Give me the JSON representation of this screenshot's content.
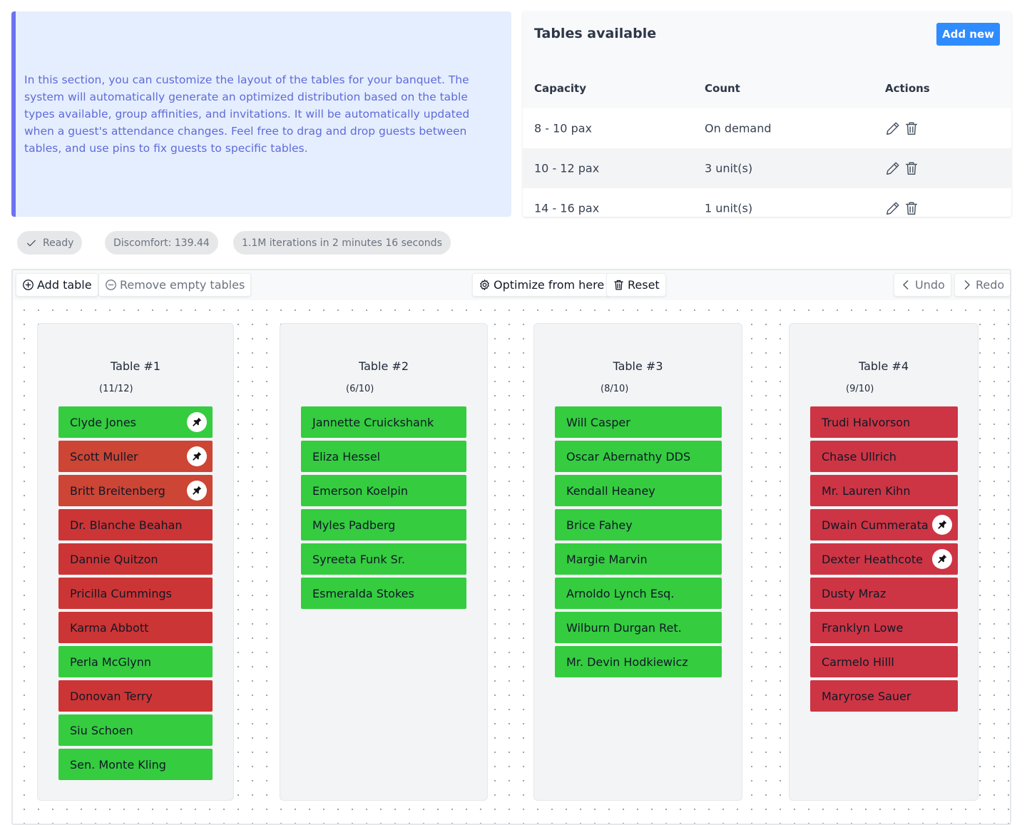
{
  "info": {
    "text": "In this section, you can customize the layout of the tables for your banquet. The system will automatically generate an optimized distribution based on the table types available, group affinities, and invitations. It will be automatically updated when a guest's attendance changes. Feel free to drag and drop guests between tables, and use pins to fix guests to specific tables."
  },
  "tables_available": {
    "title": "Tables available",
    "add_new_label": "Add new",
    "headers": [
      "Capacity",
      "Count",
      "Actions"
    ],
    "rows": [
      {
        "capacity": "8 - 10 pax",
        "count": "On demand"
      },
      {
        "capacity": "10 - 12 pax",
        "count": "3 unit(s)"
      },
      {
        "capacity": "14 - 16 pax",
        "count": "1 unit(s)"
      }
    ]
  },
  "status": {
    "ready": "Ready",
    "discomfort": "Discomfort: 139.44",
    "iterations": "1.1M iterations in 2 minutes 16 seconds"
  },
  "toolbar": {
    "add_table": "Add table",
    "remove_empty": "Remove empty tables",
    "optimize": "Optimize from here",
    "reset": "Reset",
    "undo": "Undo",
    "redo": "Redo"
  },
  "colors": {
    "good": "#35cc40",
    "bad": "#cc3535",
    "bad_alt": "#cc4535",
    "bad_pink": "#cd3544"
  },
  "tables": [
    {
      "name": "Table #1",
      "count": "(11/12)",
      "guests": [
        {
          "name": "Clyde Jones",
          "status": "good",
          "pinned": true
        },
        {
          "name": "Scott Muller",
          "status": "bad_alt",
          "pinned": true
        },
        {
          "name": "Britt Breitenberg",
          "status": "bad_alt",
          "pinned": true
        },
        {
          "name": "Dr. Blanche Beahan",
          "status": "bad",
          "pinned": false
        },
        {
          "name": "Dannie Quitzon",
          "status": "bad",
          "pinned": false
        },
        {
          "name": "Pricilla Cummings",
          "status": "bad",
          "pinned": false
        },
        {
          "name": "Karma Abbott",
          "status": "bad",
          "pinned": false
        },
        {
          "name": "Perla McGlynn",
          "status": "good",
          "pinned": false
        },
        {
          "name": "Donovan Terry",
          "status": "bad",
          "pinned": false
        },
        {
          "name": "Siu Schoen",
          "status": "good",
          "pinned": false
        },
        {
          "name": "Sen. Monte Kling",
          "status": "good",
          "pinned": false
        }
      ]
    },
    {
      "name": "Table #2",
      "count": "(6/10)",
      "guests": [
        {
          "name": "Jannette Cruickshank",
          "status": "good",
          "pinned": false
        },
        {
          "name": "Eliza Hessel",
          "status": "good",
          "pinned": false
        },
        {
          "name": "Emerson Koelpin",
          "status": "good",
          "pinned": false
        },
        {
          "name": "Myles Padberg",
          "status": "good",
          "pinned": false
        },
        {
          "name": "Syreeta Funk Sr.",
          "status": "good",
          "pinned": false
        },
        {
          "name": "Esmeralda Stokes",
          "status": "good",
          "pinned": false
        }
      ]
    },
    {
      "name": "Table #3",
      "count": "(8/10)",
      "guests": [
        {
          "name": "Will Casper",
          "status": "good",
          "pinned": false
        },
        {
          "name": "Oscar Abernathy DDS",
          "status": "good",
          "pinned": false
        },
        {
          "name": "Kendall Heaney",
          "status": "good",
          "pinned": false
        },
        {
          "name": "Brice Fahey",
          "status": "good",
          "pinned": false
        },
        {
          "name": "Margie Marvin",
          "status": "good",
          "pinned": false
        },
        {
          "name": "Arnoldo Lynch Esq.",
          "status": "good",
          "pinned": false
        },
        {
          "name": "Wilburn Durgan Ret.",
          "status": "good",
          "pinned": false
        },
        {
          "name": "Mr. Devin Hodkiewicz",
          "status": "good",
          "pinned": false
        }
      ]
    },
    {
      "name": "Table #4",
      "count": "(9/10)",
      "guests": [
        {
          "name": "Trudi Halvorson",
          "status": "bad_pink",
          "pinned": false
        },
        {
          "name": "Chase Ullrich",
          "status": "bad_pink",
          "pinned": false
        },
        {
          "name": "Mr. Lauren Kihn",
          "status": "bad_pink",
          "pinned": false
        },
        {
          "name": "Dwain Cummerata",
          "status": "bad_pink",
          "pinned": true
        },
        {
          "name": "Dexter Heathcote",
          "status": "bad_pink",
          "pinned": true
        },
        {
          "name": "Dusty Mraz",
          "status": "bad_pink",
          "pinned": false
        },
        {
          "name": "Franklyn Lowe",
          "status": "bad_pink",
          "pinned": false
        },
        {
          "name": "Carmelo Hilll",
          "status": "bad_pink",
          "pinned": false
        },
        {
          "name": "Maryrose Sauer",
          "status": "bad_pink",
          "pinned": false
        }
      ]
    }
  ]
}
